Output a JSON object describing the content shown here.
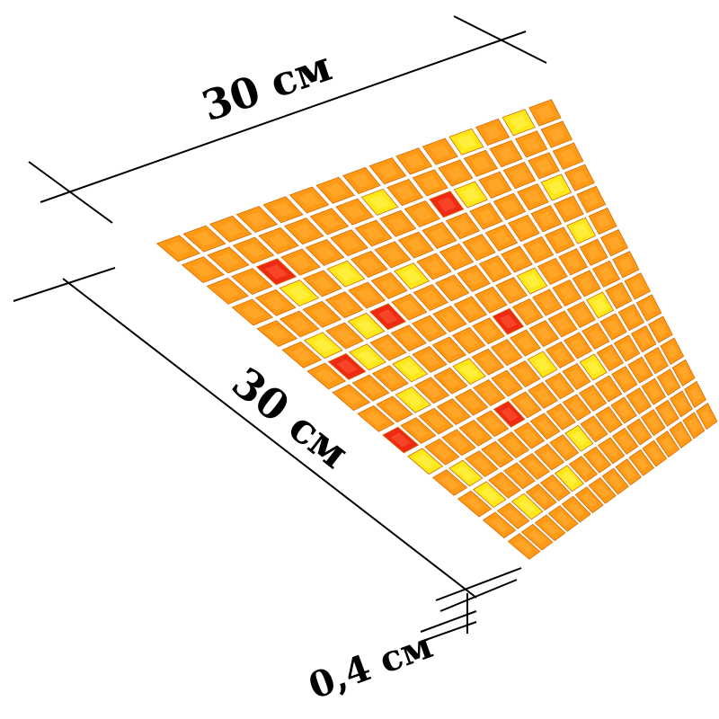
{
  "product": {
    "type": "glass mosaic tile sheet",
    "colors": {
      "orange": "#ff9a16",
      "orange_light": "#ffb13a",
      "yellow": "#ffe81a",
      "yellow_light": "#fff35a",
      "red": "#ee2a12",
      "background": "#ffffff",
      "line": "#000000"
    },
    "grid": {
      "pattern": [
        "OOOOOOOOOOOYOYO",
        "OOOOOOOYOOOOOOO",
        "OOROOOOOORYOOOO",
        "OOYOYOOOOOOOOYO",
        "OOOOOOYOOOOOOOO",
        "OYOYROOOOOOOOYO",
        "ORYOOOOOOOYOOOO",
        "OOOYOOOOROOOOOO",
        "OOYOOYOOOOOOYOO",
        "ROOOOOOOYOOOOOO",
        "YOOOOROOOOYOOOO",
        "OYOOOOOOOOOOOOO",
        "OYOOOOOYOOOOOOO",
        "OOYOOYOOOOOOOOO",
        "OOOOOOOOOOOOOOO"
      ]
    }
  },
  "dimensions": {
    "width_label": "30 см",
    "length_label": "30 см",
    "thickness_label": "0,4 см"
  }
}
